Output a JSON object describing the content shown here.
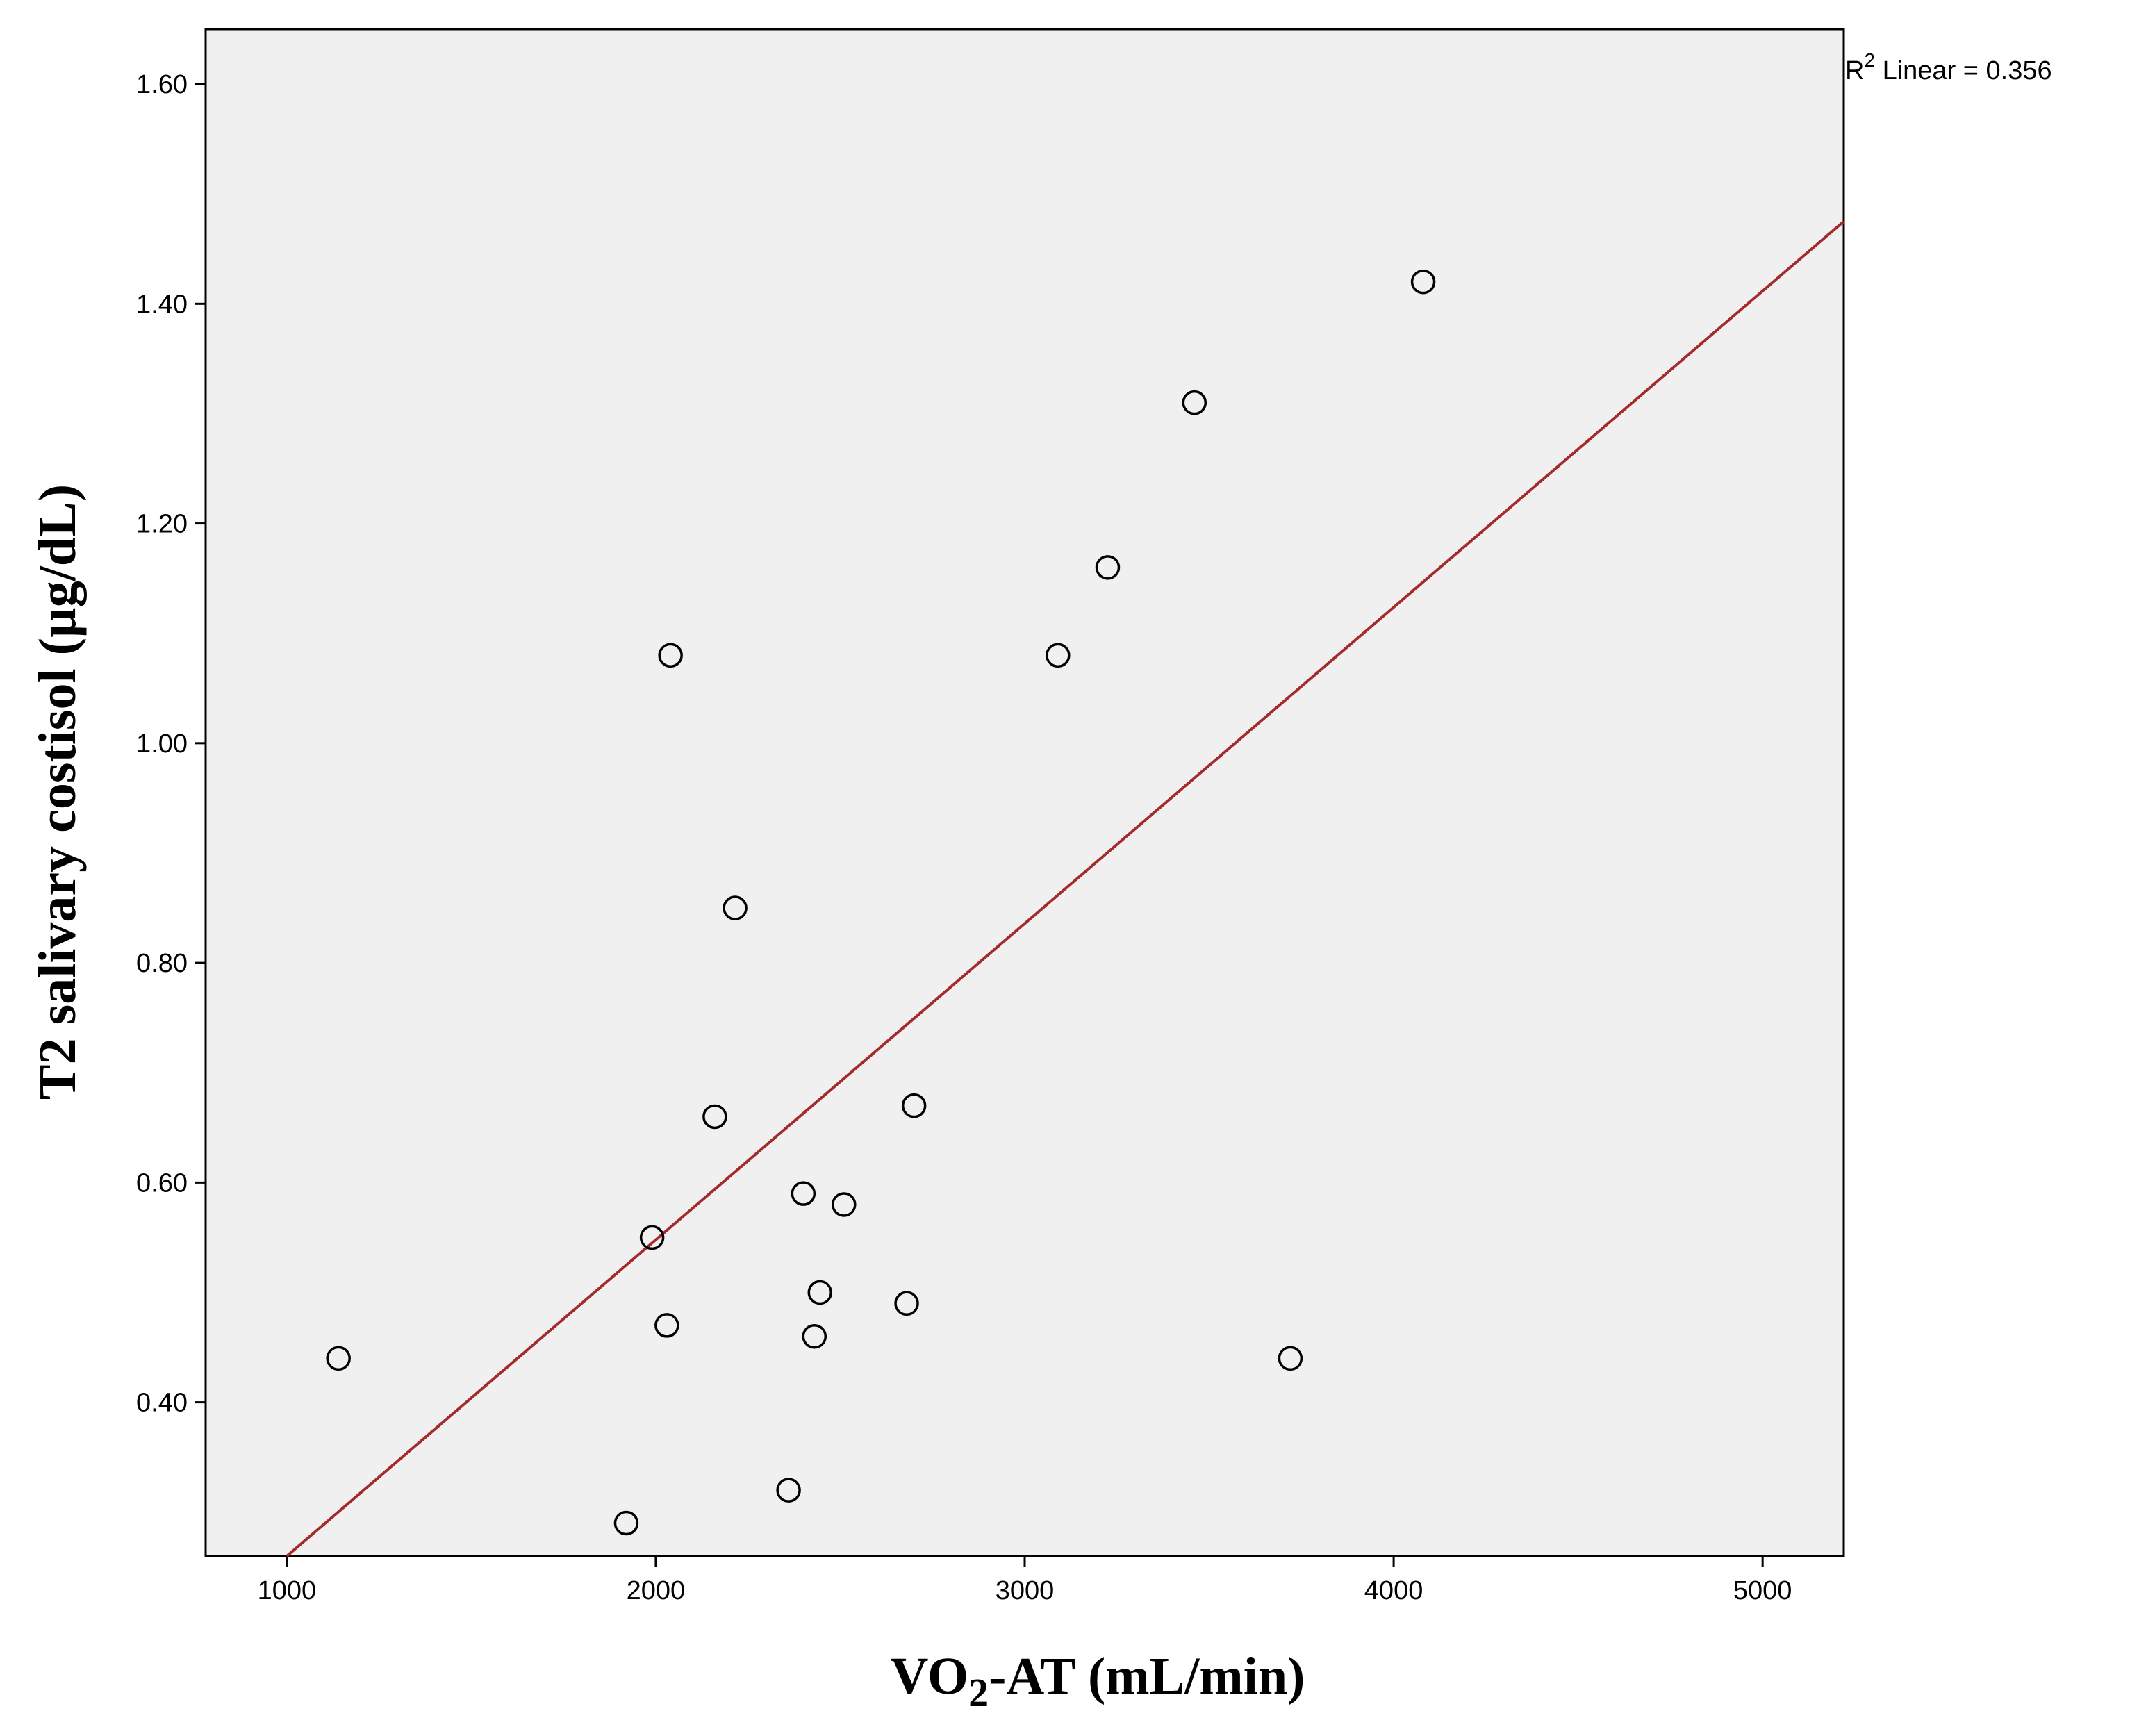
{
  "chart_data": {
    "type": "scatter",
    "xlabel": "VO2-AT (mL/min)",
    "xlabel_parts": {
      "pre": "VO",
      "sub": "2",
      "post": "-AT (mL/min)"
    },
    "ylabel": "T2 salivary costisol (µg/dL)",
    "xlim": [
      780,
      5220
    ],
    "ylim": [
      0.26,
      1.65
    ],
    "x_ticks": [
      1000,
      2000,
      3000,
      4000,
      5000
    ],
    "x_tick_labels": [
      "1000",
      "2000",
      "3000",
      "4000",
      "5000"
    ],
    "y_ticks": [
      0.4,
      0.6,
      0.8,
      1.0,
      1.2,
      1.4,
      1.6
    ],
    "y_tick_labels": [
      "0.40",
      "0.60",
      "0.80",
      "1.00",
      "1.20",
      "1.40",
      "1.60"
    ],
    "grid": false,
    "points": [
      {
        "x": 1140,
        "y": 0.44
      },
      {
        "x": 1920,
        "y": 0.29
      },
      {
        "x": 1990,
        "y": 0.55
      },
      {
        "x": 2030,
        "y": 0.47
      },
      {
        "x": 2040,
        "y": 1.08
      },
      {
        "x": 2160,
        "y": 0.66
      },
      {
        "x": 2215,
        "y": 0.85
      },
      {
        "x": 2360,
        "y": 0.32
      },
      {
        "x": 2400,
        "y": 0.59
      },
      {
        "x": 2430,
        "y": 0.46
      },
      {
        "x": 2445,
        "y": 0.5
      },
      {
        "x": 2510,
        "y": 0.58
      },
      {
        "x": 2680,
        "y": 0.49
      },
      {
        "x": 2700,
        "y": 0.67
      },
      {
        "x": 3090,
        "y": 1.08
      },
      {
        "x": 3225,
        "y": 1.16
      },
      {
        "x": 3460,
        "y": 1.31
      },
      {
        "x": 3720,
        "y": 0.44
      },
      {
        "x": 4080,
        "y": 1.42
      }
    ],
    "fit_line": {
      "x": [
        1000,
        5220
      ],
      "y": [
        0.26,
        1.475
      ]
    },
    "annotation": {
      "pre": "R",
      "sup": "2",
      "post": " Linear = 0.356"
    },
    "colors": {
      "plot_background": "#f0f0f0",
      "fit_line": "#a52a2a",
      "marker": "#000000",
      "axis": "#000000"
    }
  }
}
